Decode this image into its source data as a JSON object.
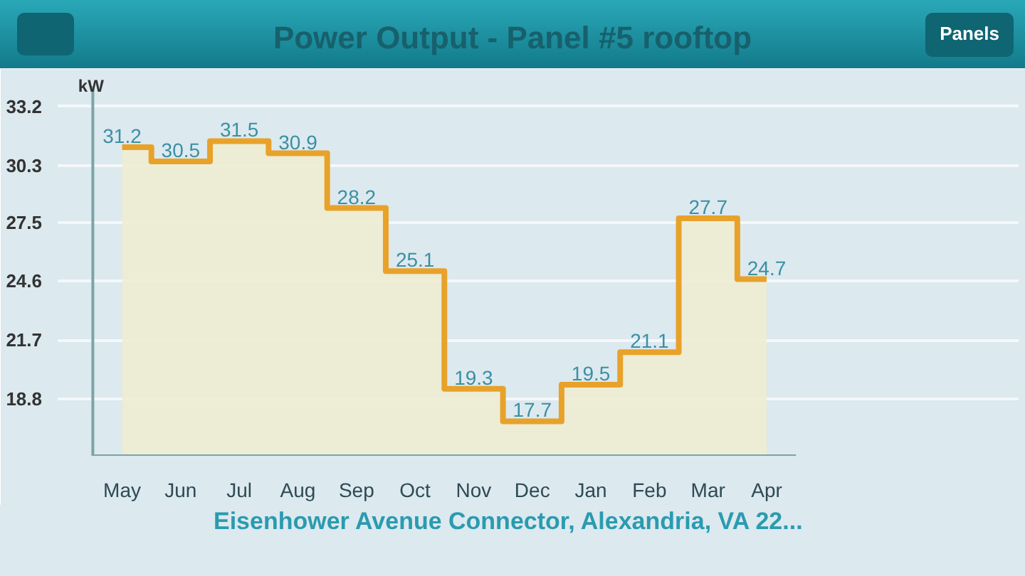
{
  "chart_data": {
    "type": "step",
    "title": "Power Output - Panel #5 rooftop",
    "ylabel": "kW",
    "categories": [
      "May",
      "Jun",
      "Jul",
      "Aug",
      "Sep",
      "Oct",
      "Nov",
      "Dec",
      "Jan",
      "Feb",
      "Mar",
      "Apr"
    ],
    "values": [
      31.2,
      30.5,
      31.5,
      30.9,
      28.2,
      25.1,
      19.3,
      17.7,
      19.5,
      21.1,
      27.7,
      24.7
    ],
    "color": "#e8a22a",
    "ylim": [
      16.0,
      34.7
    ],
    "yticks": [
      18.8,
      21.7,
      24.6,
      27.5,
      30.3,
      33.2
    ],
    "grid": "y",
    "data_labels": true,
    "annotations": [
      "Panels",
      "Eisenhower Avenue Connector, Alexandria, VA 22..."
    ]
  }
}
